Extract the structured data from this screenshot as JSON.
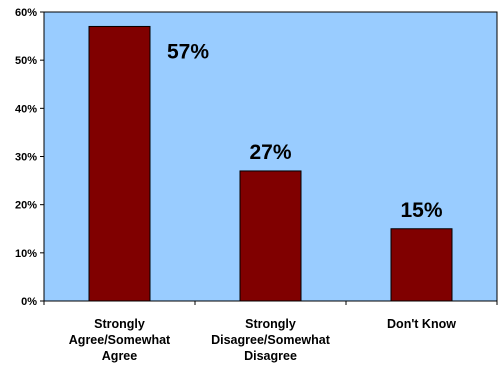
{
  "chart_data": {
    "type": "bar",
    "categories": [
      [
        "Strongly",
        "Agree/Somewhat",
        "Agree"
      ],
      [
        "Strongly",
        "Disagree/Somewhat",
        "Disagree"
      ],
      [
        "Don't Know"
      ]
    ],
    "values": [
      57,
      27,
      15
    ],
    "data_labels": [
      "57%",
      "27%",
      "15%"
    ],
    "y_ticks": [
      "0%",
      "10%",
      "20%",
      "30%",
      "40%",
      "50%",
      "60%"
    ],
    "ylim": [
      0,
      60
    ],
    "title": "",
    "xlabel": "",
    "ylabel": "",
    "grid": false,
    "legend": "none",
    "colors": {
      "plot_background": "#99ccff",
      "bar_fill": "#800000",
      "bar_stroke": "#000000",
      "axis": "#000000"
    }
  }
}
